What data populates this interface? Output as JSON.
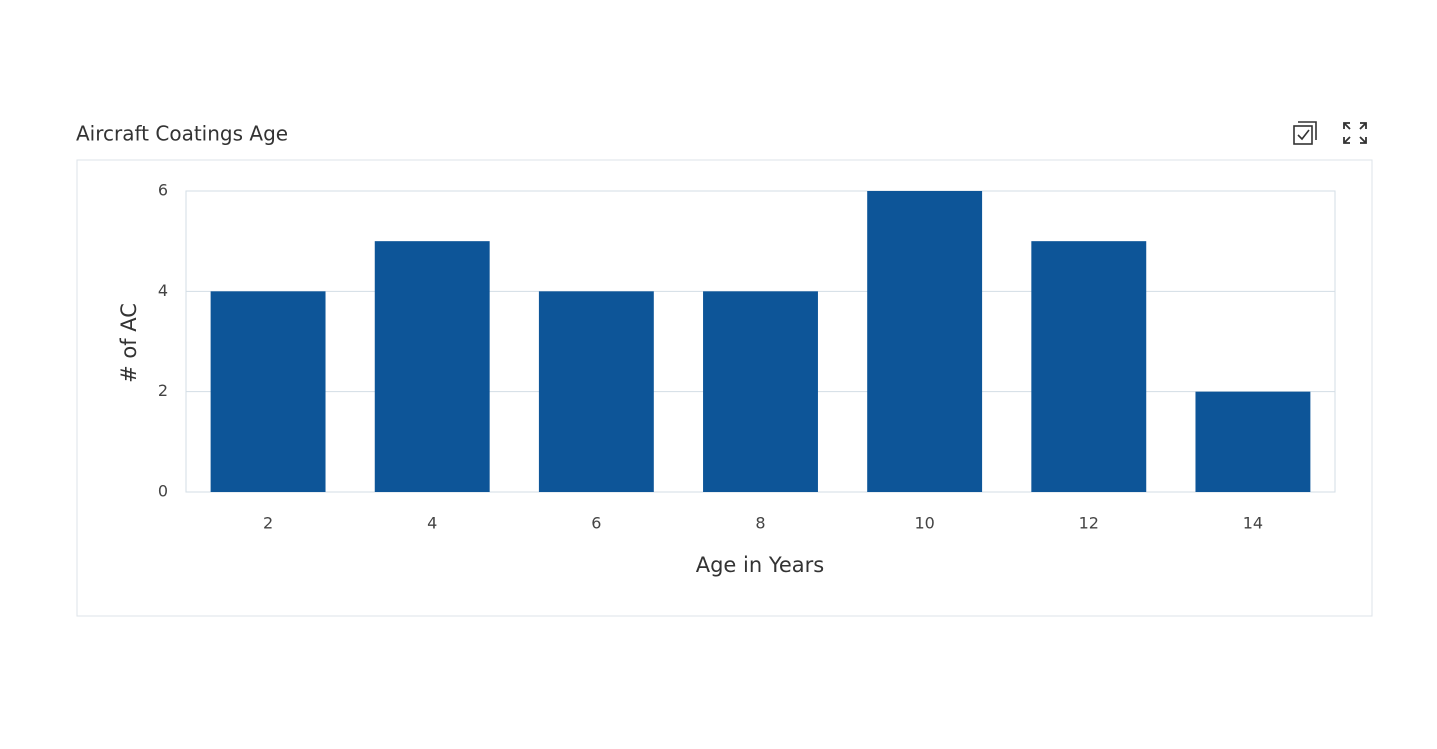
{
  "chart_data": {
    "type": "bar",
    "title": "Aircraft Coatings Age",
    "x_label": "Age in Years",
    "y_label": "# of AC",
    "categories": [
      "2",
      "4",
      "6",
      "8",
      "10",
      "12",
      "14"
    ],
    "values": [
      4,
      5,
      4,
      4,
      6,
      5,
      2
    ],
    "color": "#0d5598",
    "ylim": [
      0,
      6
    ],
    "yticks": [
      0,
      2,
      4,
      6
    ],
    "grid": true
  }
}
